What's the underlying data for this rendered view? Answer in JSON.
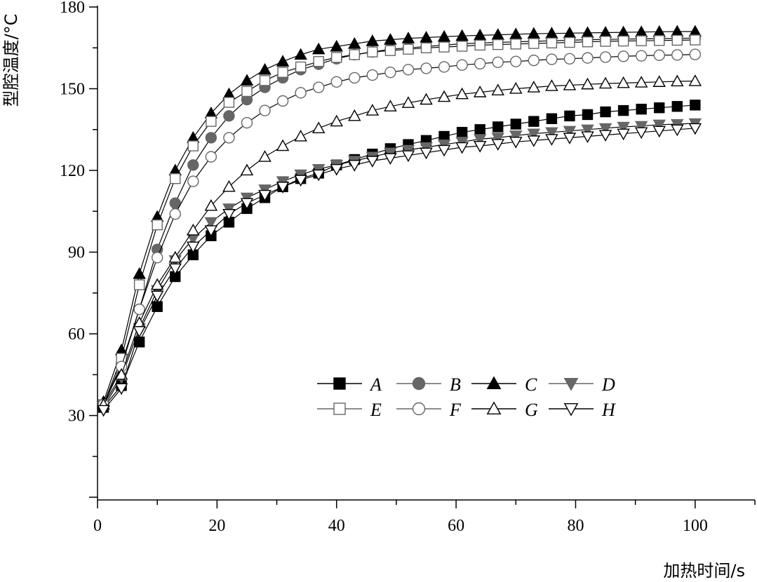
{
  "chart_data": {
    "type": "line",
    "xlabel": "加热时间/s",
    "ylabel": "型腔温度/°C",
    "xlim": [
      0,
      110
    ],
    "ylim": [
      -1,
      180
    ],
    "x_ticks": [
      0,
      20,
      40,
      60,
      80,
      100
    ],
    "y_ticks": [
      30,
      60,
      90,
      120,
      150,
      180
    ],
    "grid": false,
    "legend_position": "center-right",
    "x": [
      1,
      4,
      7,
      10,
      13,
      16,
      19,
      22,
      25,
      28,
      31,
      34,
      37,
      40,
      43,
      46,
      49,
      52,
      55,
      58,
      61,
      64,
      67,
      70,
      73,
      76,
      79,
      82,
      85,
      88,
      91,
      94,
      97,
      100
    ],
    "series": [
      {
        "name": "A",
        "marker": "square-filled",
        "color": "#000000",
        "values": [
          33,
          41,
          57,
          70,
          81,
          89,
          96,
          101,
          106,
          110,
          114,
          117,
          119,
          122,
          124,
          126,
          128,
          129.5,
          131,
          132.5,
          134,
          135,
          136,
          137,
          138,
          139,
          140,
          140.5,
          141.5,
          142,
          142.5,
          143,
          143.5,
          144
        ]
      },
      {
        "name": "B",
        "marker": "circle-filled",
        "color": "#666666",
        "values": [
          34,
          49,
          69,
          91,
          108,
          122,
          132,
          140,
          146,
          150.5,
          154,
          157,
          159,
          161,
          162.5,
          163.5,
          164.5,
          165,
          165.5,
          166,
          166.5,
          166.8,
          167,
          167.2,
          167.4,
          167.6,
          167.8,
          168,
          168.1,
          168.2,
          168.3,
          168.4,
          168.5,
          168.6
        ]
      },
      {
        "name": "C",
        "marker": "triangle-up-filled",
        "color": "#000000",
        "values": [
          35,
          54,
          82,
          103,
          120,
          132,
          141,
          148,
          153,
          157,
          160,
          162.5,
          164.5,
          165.5,
          166.5,
          167.5,
          168,
          168.5,
          168.8,
          169.1,
          169.4,
          169.6,
          169.8,
          170,
          170.2,
          170.3,
          170.4,
          170.5,
          170.6,
          170.7,
          170.8,
          170.9,
          171,
          171
        ]
      },
      {
        "name": "D",
        "marker": "triangle-down-filled",
        "color": "#666666",
        "values": [
          33,
          44,
          62,
          76,
          87,
          95,
          101,
          106,
          110,
          113,
          116,
          118.5,
          120.5,
          122,
          123.5,
          125,
          126.5,
          127.5,
          128.5,
          129.5,
          130.5,
          131.5,
          132,
          132.8,
          133.5,
          134,
          134.5,
          135,
          135.5,
          136,
          136.3,
          136.8,
          137,
          137.3
        ]
      },
      {
        "name": "E",
        "marker": "square-open",
        "color": "#666666",
        "values": [
          34,
          51,
          78,
          100,
          117,
          129,
          138,
          145,
          149,
          153,
          156,
          158,
          160,
          161.5,
          162.5,
          163.5,
          164,
          164.5,
          165,
          165.3,
          165.6,
          166,
          166.2,
          166.4,
          166.6,
          166.8,
          167,
          167.2,
          167.4,
          167.5,
          167.6,
          167.7,
          167.8,
          167.9
        ]
      },
      {
        "name": "F",
        "marker": "circle-open",
        "color": "#666666",
        "values": [
          34,
          48,
          69,
          88,
          104,
          116,
          125,
          132,
          137.5,
          142,
          145.5,
          148.5,
          150.5,
          152.5,
          154,
          155,
          156,
          157,
          157.5,
          158,
          158.7,
          159.2,
          159.7,
          160,
          160.4,
          160.8,
          161,
          161.3,
          161.6,
          161.9,
          162.1,
          162.3,
          162.4,
          162.6
        ]
      },
      {
        "name": "G",
        "marker": "triangle-up-open",
        "color": "#000000",
        "values": [
          34,
          45,
          64,
          78,
          88,
          98,
          107,
          114,
          120,
          125,
          129,
          132.5,
          135.5,
          138,
          140,
          142,
          143.5,
          144.8,
          146,
          147,
          148,
          148.7,
          149.4,
          150,
          150.5,
          151,
          151.3,
          151.6,
          151.9,
          152.1,
          152.3,
          152.5,
          152.7,
          152.8
        ]
      },
      {
        "name": "H",
        "marker": "triangle-down-open",
        "color": "#000000",
        "values": [
          32,
          40,
          61,
          74,
          84,
          92,
          98,
          104,
          108,
          111,
          114,
          116.5,
          118.5,
          120.5,
          122,
          123.5,
          124.5,
          125.5,
          126.5,
          127.5,
          128.5,
          129,
          129.7,
          130.5,
          131,
          131.5,
          132,
          132.5,
          133,
          133.5,
          134,
          134.5,
          135,
          135.5
        ]
      }
    ]
  }
}
